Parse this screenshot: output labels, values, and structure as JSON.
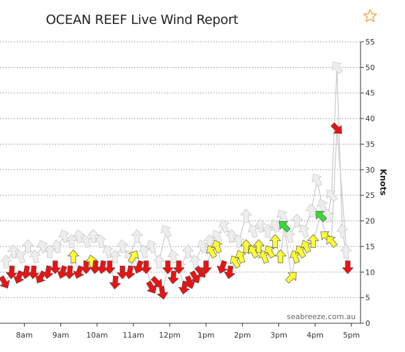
{
  "header": {
    "title": "OCEAN REEF Live Wind Report",
    "favourite_icon": "star-outline-icon",
    "favourite_color": "#f0a030"
  },
  "colors": {
    "calm": "#eeeeee",
    "light": "#ffff33",
    "moderate": "#33dd33",
    "strong": "#cc7722",
    "offshore": "#ee1111",
    "gust_line": "#cccccc",
    "grid": "#aaaaaa"
  },
  "chart_data": {
    "type": "line",
    "title": "OCEAN REEF Live Wind Report",
    "xlabel": "",
    "ylabel": "Knots",
    "x_unit": "hour-of-day",
    "xlim": [
      7.33,
      17.25
    ],
    "ylim": [
      0,
      55
    ],
    "x_ticks": [
      8,
      9,
      10,
      11,
      12,
      13,
      14,
      15,
      16,
      17
    ],
    "x_tick_labels": [
      "8am",
      "9am",
      "10am",
      "11am",
      "12pm",
      "1pm",
      "2pm",
      "3pm",
      "4pm",
      "5pm"
    ],
    "y_ticks": [
      0,
      5,
      10,
      15,
      20,
      25,
      30,
      35,
      40,
      45,
      50,
      55
    ],
    "y_tick_labels": [
      "0",
      "5",
      "10",
      "15",
      "20",
      "25",
      "30",
      "35",
      "40",
      "45",
      "50",
      "55"
    ],
    "grid": true,
    "credit": "seabreeze.com.au",
    "series": [
      {
        "kind": "gust",
        "points": [
          {
            "x": 7.5,
            "y": 12,
            "dir": 270
          },
          {
            "x": 7.7,
            "y": 14,
            "dir": 260
          },
          {
            "x": 7.9,
            "y": 13,
            "dir": 250
          },
          {
            "x": 8.1,
            "y": 15,
            "dir": 270
          },
          {
            "x": 8.3,
            "y": 13,
            "dir": 260
          },
          {
            "x": 8.5,
            "y": 15,
            "dir": 250
          },
          {
            "x": 8.7,
            "y": 14,
            "dir": 270
          },
          {
            "x": 8.9,
            "y": 15,
            "dir": 260
          },
          {
            "x": 9.1,
            "y": 17,
            "dir": 250
          },
          {
            "x": 9.3,
            "y": 16,
            "dir": 270
          },
          {
            "x": 9.5,
            "y": 17,
            "dir": 260
          },
          {
            "x": 9.7,
            "y": 16,
            "dir": 250
          },
          {
            "x": 9.9,
            "y": 17,
            "dir": 270
          },
          {
            "x": 10.1,
            "y": 16,
            "dir": 260
          },
          {
            "x": 10.3,
            "y": 14,
            "dir": 250
          },
          {
            "x": 10.5,
            "y": 13,
            "dir": 270
          },
          {
            "x": 10.7,
            "y": 15,
            "dir": 260
          },
          {
            "x": 10.9,
            "y": 13,
            "dir": 250
          },
          {
            "x": 11.1,
            "y": 17,
            "dir": 270
          },
          {
            "x": 11.3,
            "y": 14,
            "dir": 260
          },
          {
            "x": 11.5,
            "y": 15,
            "dir": 250
          },
          {
            "x": 11.7,
            "y": 12,
            "dir": 270
          },
          {
            "x": 11.9,
            "y": 18,
            "dir": 240
          },
          {
            "x": 12.1,
            "y": 13,
            "dir": 260
          },
          {
            "x": 12.3,
            "y": 11,
            "dir": 250
          },
          {
            "x": 12.5,
            "y": 14,
            "dir": 270
          },
          {
            "x": 12.7,
            "y": 12,
            "dir": 260
          },
          {
            "x": 12.9,
            "y": 15,
            "dir": 250
          },
          {
            "x": 13.1,
            "y": 16,
            "dir": 270
          },
          {
            "x": 13.3,
            "y": 17,
            "dir": 240
          },
          {
            "x": 13.5,
            "y": 19,
            "dir": 250
          },
          {
            "x": 13.7,
            "y": 17,
            "dir": 270
          },
          {
            "x": 13.9,
            "y": 16,
            "dir": 260
          },
          {
            "x": 14.1,
            "y": 21,
            "dir": 270
          },
          {
            "x": 14.3,
            "y": 18,
            "dir": 250
          },
          {
            "x": 14.5,
            "y": 19,
            "dir": 260
          },
          {
            "x": 14.7,
            "y": 18,
            "dir": 270
          },
          {
            "x": 14.9,
            "y": 19,
            "dir": 250
          },
          {
            "x": 15.1,
            "y": 21,
            "dir": 240
          },
          {
            "x": 15.3,
            "y": 17,
            "dir": 260
          },
          {
            "x": 15.5,
            "y": 20,
            "dir": 270
          },
          {
            "x": 15.7,
            "y": 18,
            "dir": 250
          },
          {
            "x": 15.9,
            "y": 22,
            "dir": 260
          },
          {
            "x": 16.05,
            "y": 28,
            "dir": 240
          },
          {
            "x": 16.2,
            "y": 23,
            "dir": 250
          },
          {
            "x": 16.35,
            "y": 21,
            "dir": 260
          },
          {
            "x": 16.45,
            "y": 25,
            "dir": 230
          },
          {
            "x": 16.6,
            "y": 50,
            "dir": 235
          },
          {
            "x": 16.75,
            "y": 18,
            "dir": 260
          },
          {
            "x": 16.85,
            "y": 14,
            "dir": 270
          }
        ]
      },
      {
        "kind": "average",
        "points": [
          {
            "x": 7.45,
            "y": 8,
            "dir": 60
          },
          {
            "x": 7.65,
            "y": 10,
            "dir": 95
          },
          {
            "x": 7.85,
            "y": 9,
            "dir": 110
          },
          {
            "x": 8.05,
            "y": 10,
            "dir": 100
          },
          {
            "x": 8.25,
            "y": 10,
            "dir": 95
          },
          {
            "x": 8.45,
            "y": 9,
            "dir": 120
          },
          {
            "x": 8.65,
            "y": 10,
            "dir": 100
          },
          {
            "x": 8.85,
            "y": 11,
            "dir": 90
          },
          {
            "x": 9.05,
            "y": 10,
            "dir": 110
          },
          {
            "x": 9.25,
            "y": 10,
            "dir": 95
          },
          {
            "x": 9.35,
            "y": 13,
            "dir": 270
          },
          {
            "x": 9.5,
            "y": 10,
            "dir": 110
          },
          {
            "x": 9.7,
            "y": 11,
            "dir": 90
          },
          {
            "x": 9.85,
            "y": 12,
            "dir": 260
          },
          {
            "x": 9.95,
            "y": 11,
            "dir": 95
          },
          {
            "x": 10.15,
            "y": 11,
            "dir": 100
          },
          {
            "x": 10.35,
            "y": 11,
            "dir": 90
          },
          {
            "x": 10.5,
            "y": 8,
            "dir": 95
          },
          {
            "x": 10.7,
            "y": 10,
            "dir": 90
          },
          {
            "x": 10.9,
            "y": 10,
            "dir": 100
          },
          {
            "x": 11.0,
            "y": 13,
            "dir": 300
          },
          {
            "x": 11.15,
            "y": 11,
            "dir": 110
          },
          {
            "x": 11.35,
            "y": 11,
            "dir": 90
          },
          {
            "x": 11.5,
            "y": 7,
            "dir": 60
          },
          {
            "x": 11.65,
            "y": 8,
            "dir": 45
          },
          {
            "x": 11.8,
            "y": 6,
            "dir": 80
          },
          {
            "x": 11.95,
            "y": 11,
            "dir": 90
          },
          {
            "x": 12.1,
            "y": 9,
            "dir": 95
          },
          {
            "x": 12.25,
            "y": 11,
            "dir": 90
          },
          {
            "x": 12.4,
            "y": 7,
            "dir": 100
          },
          {
            "x": 12.55,
            "y": 8,
            "dir": 70
          },
          {
            "x": 12.7,
            "y": 9,
            "dir": 60
          },
          {
            "x": 12.85,
            "y": 10,
            "dir": 50
          },
          {
            "x": 13.0,
            "y": 11,
            "dir": 90
          },
          {
            "x": 13.15,
            "y": 14,
            "dir": 240
          },
          {
            "x": 13.3,
            "y": 15,
            "dir": 250
          },
          {
            "x": 13.45,
            "y": 11,
            "dir": 110
          },
          {
            "x": 13.65,
            "y": 10,
            "dir": 100
          },
          {
            "x": 13.8,
            "y": 12,
            "dir": 240
          },
          {
            "x": 13.95,
            "y": 13,
            "dir": 250
          },
          {
            "x": 14.1,
            "y": 15,
            "dir": 270
          },
          {
            "x": 14.3,
            "y": 14,
            "dir": 240
          },
          {
            "x": 14.45,
            "y": 15,
            "dir": 270
          },
          {
            "x": 14.6,
            "y": 13,
            "dir": 250
          },
          {
            "x": 14.75,
            "y": 14,
            "dir": 240
          },
          {
            "x": 14.9,
            "y": 16,
            "dir": 270
          },
          {
            "x": 15.05,
            "y": 13,
            "dir": 270
          },
          {
            "x": 15.15,
            "y": 19,
            "dir": 225
          },
          {
            "x": 15.35,
            "y": 9,
            "dir": 315
          },
          {
            "x": 15.45,
            "y": 13,
            "dir": 250
          },
          {
            "x": 15.6,
            "y": 14,
            "dir": 240
          },
          {
            "x": 15.75,
            "y": 15,
            "dir": 245
          },
          {
            "x": 15.95,
            "y": 16,
            "dir": 270
          },
          {
            "x": 16.15,
            "y": 21,
            "dir": 225
          },
          {
            "x": 16.3,
            "y": 17,
            "dir": 220
          },
          {
            "x": 16.45,
            "y": 16,
            "dir": 230
          },
          {
            "x": 16.6,
            "y": 38,
            "dir": 45
          },
          {
            "x": 16.9,
            "y": 11,
            "dir": 90
          }
        ]
      }
    ]
  }
}
